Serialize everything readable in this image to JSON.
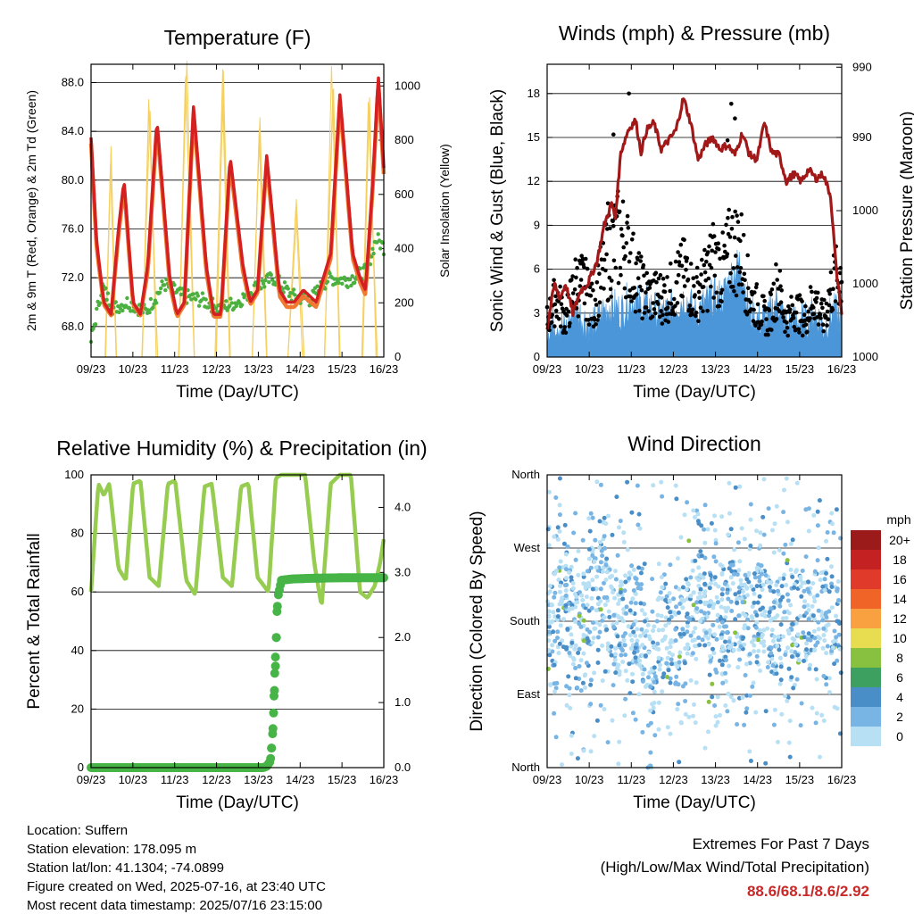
{
  "x_ticks": [
    "09/23",
    "10/23",
    "11/23",
    "12/23",
    "13/23",
    "14/23",
    "15/23",
    "16/23"
  ],
  "x_label": "Time (Day/UTC)",
  "panels": {
    "temperature": {
      "title": "Temperature (F)",
      "ylabel_left": "2m & 9m T (Red, Orange) & 2m Td (Green)",
      "ylabel_right": "Solar Insolation (Yellow)",
      "left_ticks": [
        "68.0",
        "72.0",
        "76.0",
        "80.0",
        "84.0",
        "88.0"
      ],
      "right_ticks": [
        "0",
        "200",
        "400",
        "600",
        "800",
        "1000"
      ]
    },
    "wind": {
      "title": "Winds (mph) & Pressure (mb)",
      "ylabel_left": "Sonic Wind & Gust (Blue, Black)",
      "ylabel_right": "Station Pressure (Maroon)",
      "left_ticks": [
        "0",
        "3",
        "6",
        "9",
        "12",
        "15",
        "18"
      ],
      "right_ticks": [
        "990",
        "990",
        "1000",
        "1000",
        "1000"
      ]
    },
    "humidity": {
      "title": "Relative Humidity (%) & Precipitation (in)",
      "ylabel_left": "Percent & Total Rainfall",
      "left_ticks": [
        "0",
        "20",
        "40",
        "60",
        "80",
        "100"
      ],
      "right_ticks": [
        "0.0",
        "1.0",
        "2.0",
        "3.0",
        "4.0"
      ]
    },
    "direction": {
      "title": "Wind Direction",
      "ylabel_left": "Direction (Colored By Speed)",
      "left_ticks": [
        "North",
        "East",
        "South",
        "West",
        "North"
      ],
      "legend_title": "mph",
      "legend_labels": [
        "20+",
        "18",
        "16",
        "14",
        "12",
        "10",
        "8",
        "6",
        "4",
        "2",
        "0"
      ]
    }
  },
  "footer": {
    "location": "Location: Suffern",
    "elevation": "Station elevation: 178.095 m",
    "latlon": "Station lat/lon: 41.1304; -74.0899",
    "created": "Figure created on Wed, 2025-07-16, at 23:40 UTC",
    "recent": "Most recent data timestamp: 2025/07/16 23:15:00"
  },
  "extremes": {
    "title": "Extremes For Past 7 Days",
    "subtitle": "(High/Low/Max Wind/Total Precipitation)",
    "values": "88.6/68.1/8.6/2.92"
  },
  "colors": {
    "temp_red": "#d42020",
    "temp_orange": "#f07830",
    "dewpoint_green": "#4cb040",
    "solar_yellow": "#f5d060",
    "wind_blue": "#4a96d8",
    "gust_black": "#000000",
    "pressure_maroon": "#a01818",
    "rh_light_green": "#96cc50",
    "precip_green": "#46b446",
    "extremes_red": "#c82828",
    "legend": [
      "#9b1a1a",
      "#c42222",
      "#e03a2a",
      "#f06428",
      "#f9a040",
      "#e8dc50",
      "#88c040",
      "#3da060",
      "#4a8ec8",
      "#78b4e4",
      "#b8e0f4"
    ]
  },
  "chart_data": [
    {
      "type": "line",
      "title": "Temperature (F)",
      "xlabel": "Time (Day/UTC)",
      "ylabel": "2m & 9m T (Red, Orange) & 2m Td (Green)",
      "ylabel_right": "Solar Insolation (Yellow)",
      "x": [
        "09/23",
        "10/23",
        "11/23",
        "12/23",
        "13/23",
        "14/23",
        "15/23",
        "16/23"
      ],
      "ylim": [
        65.5,
        89.5
      ],
      "ylim_right": [
        0,
        1080
      ],
      "series": [
        {
          "x": [
            0,
            0.15,
            0.35,
            0.55,
            0.75,
            0.9,
            1.15,
            1.35,
            1.55,
            1.8,
            2.15,
            2.35,
            2.55,
            2.8,
            3.15,
            3.35,
            3.55,
            3.8,
            4.15,
            4.35,
            4.55,
            4.8,
            5.15,
            5.35,
            5.55,
            5.8,
            6.15,
            6.35,
            6.55,
            6.8,
            7.15,
            7.35,
            7.5,
            7.7,
            7.85,
            8.0
          ],
          "y": [
            83.5,
            75,
            70,
            69,
            76,
            80,
            70,
            69,
            73,
            85,
            72,
            69,
            70,
            86,
            73,
            69,
            69,
            82,
            73,
            70,
            71,
            82,
            71,
            70,
            70,
            71,
            70,
            72,
            74,
            87,
            74,
            72,
            71,
            80,
            88.6,
            81
          ]
        },
        {
          "x": [
            0,
            0.15,
            0.35,
            0.55,
            0.75,
            0.9,
            1.15,
            1.35,
            1.55,
            1.8,
            2.15,
            2.35,
            2.55,
            2.8,
            3.15,
            3.35,
            3.55,
            3.8,
            4.15,
            4.35,
            4.55,
            4.8,
            5.15,
            5.35,
            5.55,
            5.8,
            6.15,
            6.35,
            6.55,
            6.8,
            7.15,
            7.35,
            7.5,
            7.7,
            7.85,
            8.0
          ],
          "y": [
            83,
            74.5,
            69.8,
            68.9,
            75.5,
            79.5,
            69.8,
            68.9,
            72.5,
            84.5,
            71.5,
            68.8,
            69.8,
            85.5,
            72.5,
            68.8,
            68.8,
            81.5,
            72.5,
            69.8,
            70.8,
            81.5,
            70.5,
            69.6,
            69.6,
            70.5,
            69.6,
            71.6,
            73.6,
            86.5,
            73.6,
            71.6,
            70.6,
            79.5,
            88,
            80.5
          ]
        },
        {
          "x": [
            0,
            0.3,
            0.6,
            1.0,
            1.5,
            2.0,
            2.5,
            3.0,
            3.5,
            4.0,
            4.5,
            5.0,
            5.5,
            6.0,
            6.5,
            7.0,
            7.5,
            7.8,
            8.0
          ],
          "y": [
            66.8,
            71.3,
            69.5,
            70,
            69.2,
            71.5,
            70.5,
            70.2,
            69.5,
            70,
            71.2,
            72,
            70.5,
            70.2,
            72,
            71.8,
            72.5,
            75.2,
            74.5
          ]
        },
        {
          "x": [
            0.4,
            0.55,
            0.7,
            1.4,
            1.6,
            1.8,
            2.4,
            2.6,
            2.8,
            3.4,
            3.6,
            3.8,
            4.4,
            4.6,
            4.8,
            5.4,
            5.6,
            5.8,
            6.4,
            6.6,
            6.8,
            7.4,
            7.6,
            7.8
          ],
          "y": [
            0,
            700,
            0,
            0,
            950,
            0,
            0,
            1050,
            0,
            0,
            1000,
            0,
            0,
            900,
            0,
            0,
            600,
            0,
            0,
            1000,
            0,
            0,
            950,
            0
          ]
        }
      ]
    },
    {
      "type": "scatter",
      "title": "Winds (mph) & Pressure (mb)",
      "xlabel": "Time (Day/UTC)",
      "ylabel": "Sonic Wind & Gust (Blue, Black)",
      "ylabel_right": "Station Pressure (Maroon)",
      "x": [
        "09/23",
        "10/23",
        "11/23",
        "12/23",
        "13/23",
        "14/23",
        "15/23",
        "16/23"
      ],
      "ylim": [
        0,
        20
      ],
      "series": [
        {
          "x": [
            0,
            0.25,
            0.5,
            0.75,
            1,
            1.25,
            1.5,
            1.75,
            2,
            2.25,
            2.5,
            2.75,
            3,
            3.25,
            3.5,
            3.75,
            4,
            4.25,
            4.5,
            4.75,
            5,
            5.25,
            5.5,
            5.75,
            6,
            6.25,
            6.5,
            6.75,
            7,
            7.25,
            7.5,
            7.75,
            8
          ],
          "y": [
            1.5,
            2,
            1.2,
            2.8,
            2,
            1.5,
            2.5,
            3,
            2.5,
            3.5,
            3,
            3,
            2.5,
            2.5,
            3,
            3.5,
            2.5,
            3,
            3.5,
            3.5,
            5,
            6,
            2.5,
            2,
            2,
            3.5,
            1.5,
            2,
            1.8,
            2.5,
            1.5,
            2.5,
            2.2
          ]
        },
        {
          "x": [
            0,
            0.25,
            0.5,
            0.75,
            1,
            1.25,
            1.5,
            1.75,
            2,
            2.25,
            2.5,
            2.75,
            3,
            3.25,
            3.5,
            3.75,
            4,
            4.25,
            4.5,
            4.75,
            5,
            5.25,
            5.5,
            5.75,
            6,
            6.25,
            6.5,
            6.75,
            7,
            7.25,
            7.5,
            7.75,
            8
          ],
          "y": [
            3,
            5,
            3,
            6,
            6,
            4,
            7,
            9,
            10,
            8,
            6,
            5,
            5,
            5,
            6,
            7,
            5,
            6,
            8,
            7,
            9,
            9,
            5,
            4,
            3,
            6,
            3,
            4,
            3,
            5,
            3,
            6,
            7
          ]
        },
        {
          "x": [
            0,
            0.2,
            0.35,
            0.5,
            0.7,
            0.9,
            1.1,
            1.35,
            1.55,
            1.75,
            1.85,
            2.0,
            2.2,
            2.4,
            2.55,
            2.7,
            2.9,
            3.1,
            3.3,
            3.5,
            3.7,
            3.9,
            4.1,
            4.3,
            4.5,
            4.7,
            4.9,
            5.1,
            5.3,
            5.5,
            5.7,
            5.9,
            6.1,
            6.3,
            6.5,
            6.7,
            6.9,
            7.1,
            7.3,
            7.5,
            7.7,
            7.85,
            8.0
          ],
          "y": [
            2,
            5,
            4,
            5,
            3,
            4.5,
            5,
            6.5,
            9,
            10.5,
            9.5,
            14,
            15.5,
            16.2,
            14,
            15.5,
            16,
            14.2,
            14.8,
            15.5,
            17.7,
            16,
            13.5,
            14.5,
            15,
            14.2,
            14.5,
            13.8,
            15.3,
            13.8,
            13.5,
            16,
            14,
            13.8,
            12,
            12.5,
            12,
            12.8,
            12.2,
            12.5,
            11,
            6,
            3
          ]
        }
      ]
    },
    {
      "type": "line",
      "title": "Relative Humidity (%) & Precipitation (in)",
      "xlabel": "Time (Day/UTC)",
      "ylabel": "Percent & Total Rainfall",
      "x": [
        "09/23",
        "10/23",
        "11/23",
        "12/23",
        "13/23",
        "14/23",
        "15/23",
        "16/23"
      ],
      "ylim": [
        0,
        100
      ],
      "ylim_right": [
        0,
        4.5
      ],
      "series": [
        {
          "x": [
            0,
            0.2,
            0.35,
            0.5,
            0.75,
            0.95,
            1.15,
            1.35,
            1.6,
            1.85,
            2.1,
            2.3,
            2.6,
            2.85,
            3.1,
            3.3,
            3.6,
            3.85,
            4.1,
            4.3,
            4.55,
            4.85,
            5.05,
            5.2,
            5.4,
            5.65,
            5.85,
            6.1,
            6.3,
            6.55,
            6.8,
            7.1,
            7.35,
            7.55,
            7.75,
            7.9,
            8.0
          ],
          "y": [
            60,
            97,
            93,
            97,
            68,
            64,
            97,
            98,
            65,
            62,
            97,
            98,
            64,
            59,
            96,
            97,
            65,
            62,
            96,
            97,
            65,
            60,
            99,
            100,
            100,
            100,
            100,
            70,
            55,
            97,
            100,
            100,
            60,
            58,
            62,
            70,
            78
          ]
        },
        {
          "x": [
            0,
            4.5,
            4.7,
            4.8,
            4.9,
            4.95,
            5.0,
            5.05,
            5.1,
            5.2,
            5.5,
            6.0,
            7.0,
            8.0
          ],
          "y": [
            0,
            0,
            0,
            0.02,
            0.1,
            0.4,
            1.0,
            1.7,
            2.6,
            2.88,
            2.9,
            2.91,
            2.92,
            2.92
          ]
        }
      ]
    },
    {
      "type": "scatter",
      "title": "Wind Direction",
      "xlabel": "Time (Day/UTC)",
      "ylabel": "Direction (Colored By Speed)",
      "x": [
        "09/23",
        "10/23",
        "11/23",
        "12/23",
        "13/23",
        "14/23",
        "15/23",
        "16/23"
      ],
      "y_ticks": [
        "North",
        "East",
        "South",
        "West",
        "North"
      ],
      "ylim": [
        0,
        360
      ],
      "legend_title": "mph",
      "legend": [
        "20+",
        "18",
        "16",
        "14",
        "12",
        "10",
        "8",
        "6",
        "4",
        "2",
        "0"
      ],
      "series": [
        {
          "x": [
            0.2,
            0.5,
            0.8,
            1.1,
            1.4,
            1.8,
            2.2,
            2.5,
            2.8,
            3.1,
            3.5,
            3.8,
            4.2,
            4.5,
            4.8,
            5.1,
            5.4,
            5.8,
            6.2,
            6.5,
            6.8,
            7.1,
            7.5,
            7.8
          ],
          "y": [
            180,
            210,
            150,
            200,
            230,
            170,
            180,
            190,
            100,
            180,
            150,
            190,
            210,
            180,
            170,
            200,
            180,
            190,
            170,
            200,
            180,
            190,
            200,
            180
          ]
        }
      ]
    }
  ]
}
